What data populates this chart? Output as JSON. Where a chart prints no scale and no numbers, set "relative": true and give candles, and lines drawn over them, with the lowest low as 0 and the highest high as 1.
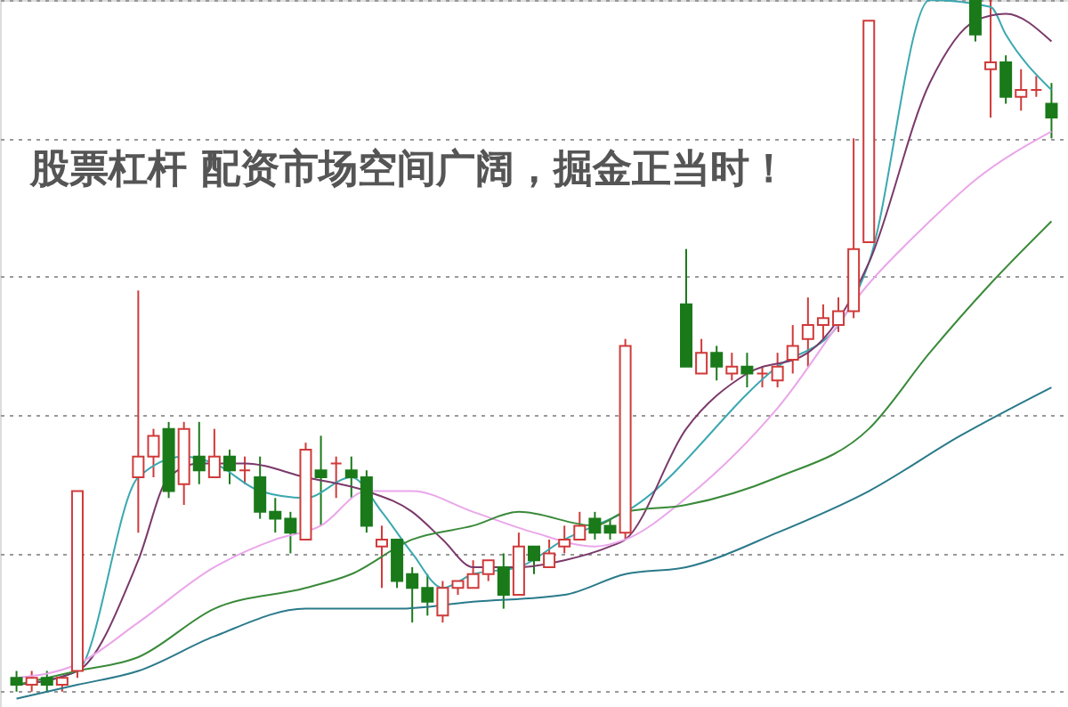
{
  "chart_data": {
    "type": "candlestick",
    "title": "股票杠杆 配资市场空间广阔，掘金正当时！",
    "relative": true,
    "grid": "y",
    "categories": [
      null,
      null,
      null,
      null,
      null,
      null,
      null,
      null,
      null,
      null,
      null,
      null,
      null,
      null,
      null,
      null,
      null,
      null,
      null,
      null,
      null,
      null,
      null,
      null,
      null,
      null,
      null,
      null,
      null,
      null,
      null,
      null,
      null,
      null,
      null,
      null,
      null,
      null,
      null,
      null,
      null,
      null,
      null,
      null,
      null,
      null,
      null,
      null,
      null,
      null,
      null,
      null,
      null,
      null,
      null,
      null,
      null,
      null,
      null,
      null,
      null,
      null,
      null,
      null,
      null,
      null,
      null,
      null,
      null
    ],
    "ohlc": [
      [
        0.02,
        0.03,
        0,
        0.01
      ],
      [
        0.01,
        0.03,
        0,
        0.02
      ],
      [
        0.02,
        0.03,
        0,
        0.01
      ],
      [
        0.01,
        0.02,
        0,
        0.02
      ],
      [
        0.03,
        0.29,
        0.02,
        0.29
      ],
      null,
      null,
      null,
      [
        0.31,
        0.58,
        0.23,
        0.34
      ],
      [
        0.34,
        0.38,
        0.31,
        0.37
      ],
      [
        0.38,
        0.39,
        0.28,
        0.29
      ],
      [
        0.3,
        0.39,
        0.27,
        0.38
      ],
      [
        0.34,
        0.39,
        0.3,
        0.32
      ],
      [
        0.31,
        0.38,
        0.31,
        0.34
      ],
      [
        0.34,
        0.35,
        0.3,
        0.32
      ],
      [
        0.32,
        0.34,
        0.3,
        0.32
      ],
      [
        0.31,
        0.34,
        0.25,
        0.26
      ],
      [
        0.26,
        0.28,
        0.23,
        0.25
      ],
      [
        0.25,
        0.26,
        0.2,
        0.23
      ],
      [
        0.22,
        0.36,
        0.22,
        0.35
      ],
      [
        0.32,
        0.37,
        0.24,
        0.31
      ],
      [
        0.33,
        0.34,
        0.28,
        0.33
      ],
      [
        0.32,
        0.34,
        0.28,
        0.31
      ],
      [
        0.31,
        0.32,
        0.23,
        0.24
      ],
      [
        0.21,
        0.24,
        0.15,
        0.22
      ],
      [
        0.22,
        0.22,
        0.15,
        0.16
      ],
      [
        0.17,
        0.18,
        0.1,
        0.15
      ],
      [
        0.15,
        0.17,
        0.11,
        0.13
      ],
      [
        0.11,
        0.16,
        0.1,
        0.15
      ],
      [
        0.15,
        0.16,
        0.14,
        0.16
      ],
      [
        0.15,
        0.19,
        0.15,
        0.17
      ],
      [
        0.17,
        0.19,
        0.16,
        0.19
      ],
      [
        0.18,
        0.2,
        0.12,
        0.14
      ],
      [
        0.14,
        0.23,
        0.14,
        0.21
      ],
      [
        0.21,
        0.21,
        0.17,
        0.19
      ],
      [
        0.18,
        0.22,
        0.18,
        0.2
      ],
      [
        0.21,
        0.24,
        0.2,
        0.22
      ],
      [
        0.22,
        0.26,
        0.22,
        0.24
      ],
      [
        0.25,
        0.26,
        0.22,
        0.23
      ],
      [
        0.24,
        0.25,
        0.22,
        0.23
      ],
      [
        0.23,
        0.51,
        0.22,
        0.5
      ],
      null,
      null,
      null,
      [
        0.56,
        0.64,
        0.47,
        0.47
      ],
      [
        0.46,
        0.51,
        0.46,
        0.49
      ],
      [
        0.49,
        0.5,
        0.45,
        0.47
      ],
      [
        0.46,
        0.49,
        0.45,
        0.47
      ],
      [
        0.47,
        0.49,
        0.44,
        0.46
      ],
      [
        0.46,
        0.47,
        0.44,
        0.46
      ],
      [
        0.45,
        0.49,
        0.44,
        0.47
      ],
      [
        0.48,
        0.53,
        0.46,
        0.5
      ],
      [
        0.51,
        0.57,
        0.47,
        0.53
      ],
      [
        0.53,
        0.56,
        0.51,
        0.54
      ],
      [
        0.53,
        0.57,
        0.52,
        0.55
      ],
      [
        0.55,
        0.8,
        0.54,
        0.64
      ],
      [
        0.65,
        0.97,
        0.65,
        0.97
      ],
      null,
      null,
      null,
      null,
      null,
      null,
      [
        1.0,
        1.0,
        0.94,
        0.95
      ],
      [
        0.9,
        1.0,
        0.83,
        0.91
      ],
      [
        0.91,
        0.92,
        0.85,
        0.86
      ],
      [
        0.86,
        0.9,
        0.84,
        0.87
      ],
      [
        0.87,
        0.89,
        0.86,
        0.87
      ],
      [
        0.85,
        0.88,
        0.8,
        0.83
      ]
    ],
    "colors": [
      "#1a7a1a",
      "#d03a3a",
      "#1a7a1a",
      "#d03a3a",
      "#d03a3a",
      null,
      null,
      null,
      "#d03a3a",
      "#d03a3a",
      "#1a7a1a",
      "#d03a3a",
      "#1a7a1a",
      "#d03a3a",
      "#1a7a1a",
      "#d03a3a",
      "#1a7a1a",
      "#1a7a1a",
      "#1a7a1a",
      "#d03a3a",
      "#1a7a1a",
      "#d03a3a",
      "#1a7a1a",
      "#1a7a1a",
      "#d03a3a",
      "#1a7a1a",
      "#1a7a1a",
      "#1a7a1a",
      "#d03a3a",
      "#d03a3a",
      "#d03a3a",
      "#d03a3a",
      "#1a7a1a",
      "#d03a3a",
      "#1a7a1a",
      "#d03a3a",
      "#d03a3a",
      "#d03a3a",
      "#1a7a1a",
      "#1a7a1a",
      "#d03a3a",
      null,
      null,
      null,
      "#1a7a1a",
      "#d03a3a",
      "#1a7a1a",
      "#d03a3a",
      "#1a7a1a",
      "#d03a3a",
      "#d03a3a",
      "#d03a3a",
      "#d03a3a",
      "#d03a3a",
      "#d03a3a",
      "#d03a3a",
      "#d03a3a",
      null,
      null,
      null,
      null,
      null,
      null,
      "#1a7a1a",
      "#d03a3a",
      "#1a7a1a",
      "#d03a3a",
      "#d03a3a",
      "#1a7a1a"
    ],
    "series": [
      {
        "type": "line",
        "color": "#3aa8b0",
        "values": [
          0.01,
          null,
          null,
          null,
          0.03,
          null,
          null,
          null,
          0.31,
          null,
          null,
          0.34,
          null,
          0.33,
          null,
          null,
          0.29,
          null,
          null,
          0.28,
          null,
          null,
          0.31,
          null,
          0.26,
          null,
          0.2,
          null,
          0.15,
          null,
          0.17,
          null,
          null,
          0.18,
          null,
          null,
          0.22,
          null,
          0.24,
          null,
          0.26,
          null,
          null,
          null,
          null,
          null,
          null,
          null,
          null,
          null,
          0.47,
          null,
          null,
          null,
          0.53,
          null,
          0.62,
          null,
          null,
          null,
          1.0,
          null,
          null,
          null,
          0.99,
          0.95,
          null,
          null,
          0.87
        ]
      },
      {
        "type": "line",
        "color": "#7a3a6a",
        "values": [
          0.01,
          null,
          null,
          null,
          0.03,
          null,
          null,
          null,
          0.19,
          null,
          0.31,
          null,
          0.33,
          null,
          null,
          0.33,
          null,
          null,
          null,
          0.31,
          null,
          null,
          null,
          0.29,
          null,
          null,
          0.26,
          null,
          0.22,
          null,
          0.18,
          null,
          null,
          0.18,
          null,
          null,
          0.19,
          null,
          null,
          0.21,
          0.22,
          null,
          null,
          null,
          0.38,
          null,
          null,
          null,
          0.46,
          null,
          null,
          null,
          0.49,
          null,
          null,
          null,
          0.62,
          null,
          null,
          null,
          0.88,
          null,
          null,
          0.97,
          null,
          0.98,
          null,
          null,
          0.94
        ]
      },
      {
        "type": "line",
        "color": "#eaa6ea",
        "values": [
          0.02,
          null,
          null,
          null,
          0.04,
          null,
          null,
          null,
          0.1,
          null,
          null,
          null,
          null,
          0.18,
          null,
          null,
          null,
          0.22,
          null,
          null,
          0.24,
          null,
          null,
          0.29,
          null,
          null,
          0.29,
          null,
          null,
          null,
          0.26,
          null,
          null,
          null,
          0.23,
          null,
          null,
          null,
          0.21,
          null,
          0.22,
          null,
          null,
          null,
          0.28,
          null,
          null,
          null,
          null,
          null,
          0.41,
          null,
          null,
          null,
          null,
          null,
          0.59,
          null,
          null,
          null,
          0.68,
          null,
          null,
          0.74,
          null,
          null,
          null,
          null,
          0.81
        ]
      },
      {
        "type": "line",
        "color": "#3a8a3a",
        "values": [
          0.01,
          null,
          null,
          null,
          0.03,
          null,
          null,
          null,
          0.05,
          null,
          null,
          null,
          null,
          0.12,
          null,
          null,
          null,
          null,
          null,
          0.15,
          null,
          null,
          0.17,
          null,
          null,
          null,
          0.22,
          null,
          null,
          null,
          0.24,
          null,
          null,
          0.26,
          null,
          null,
          null,
          null,
          0.24,
          null,
          0.26,
          null,
          null,
          null,
          0.27,
          null,
          null,
          null,
          null,
          null,
          0.31,
          null,
          null,
          null,
          null,
          null,
          0.38,
          null,
          null,
          null,
          0.49,
          null,
          null,
          null,
          0.59,
          null,
          null,
          null,
          0.68
        ]
      },
      {
        "type": "line",
        "color": "#2a7a8a",
        "values": [
          -0.01,
          null,
          null,
          null,
          0.01,
          null,
          null,
          null,
          0.03,
          null,
          null,
          null,
          null,
          0.08,
          null,
          null,
          null,
          null,
          null,
          0.12,
          null,
          null,
          null,
          null,
          null,
          0.12,
          null,
          null,
          null,
          null,
          0.13,
          null,
          null,
          null,
          null,
          null,
          0.14,
          null,
          null,
          null,
          0.17,
          null,
          null,
          null,
          0.18,
          null,
          null,
          null,
          null,
          null,
          0.23,
          null,
          null,
          null,
          null,
          null,
          0.29,
          null,
          null,
          null,
          null,
          null,
          0.37,
          null,
          null,
          null,
          null,
          null,
          0.44
        ]
      }
    ]
  }
}
